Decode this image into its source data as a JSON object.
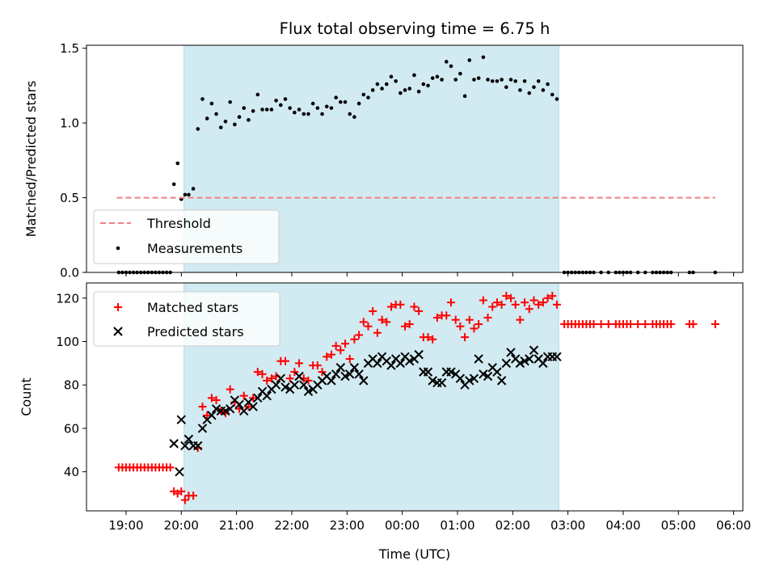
{
  "chart_data": [
    {
      "type": "scatter",
      "title": "Flux total observing time = 6.75 h",
      "ylabel": "Matched/Predicted stars",
      "xlabel": "",
      "ylim": [
        0,
        1.52
      ],
      "yticks": [
        "0.0",
        "0.5",
        "1.0",
        "1.5"
      ],
      "ytick_values": [
        0,
        0.5,
        1.0,
        1.5
      ],
      "shaded_span": [
        "20:03",
        "02:50"
      ],
      "shaded_color": "#add8e6",
      "legend_placement": "lower-left",
      "threshold": {
        "name": "Threshold",
        "y": 0.5,
        "x_range": [
          "18:50",
          "05:40"
        ],
        "color": "#f08080"
      },
      "series": [
        {
          "name": "Measurements",
          "color": "#000000",
          "x": [
            "18:52",
            "18:56",
            "19:00",
            "19:04",
            "19:08",
            "19:12",
            "19:16",
            "19:20",
            "19:24",
            "19:28",
            "19:32",
            "19:36",
            "19:40",
            "19:44",
            "19:48",
            "19:52",
            "19:56",
            "20:00",
            "20:04",
            "20:08",
            "20:13",
            "20:18",
            "20:23",
            "20:28",
            "20:33",
            "20:38",
            "20:43",
            "20:48",
            "20:53",
            "20:58",
            "21:03",
            "21:08",
            "21:13",
            "21:18",
            "21:23",
            "21:28",
            "21:33",
            "21:38",
            "21:43",
            "21:48",
            "21:53",
            "21:58",
            "22:03",
            "22:08",
            "22:13",
            "22:18",
            "22:23",
            "22:28",
            "22:33",
            "22:38",
            "22:43",
            "22:48",
            "22:53",
            "22:58",
            "23:03",
            "23:08",
            "23:13",
            "23:18",
            "23:23",
            "23:28",
            "23:33",
            "23:38",
            "23:43",
            "23:48",
            "23:53",
            "23:58",
            "00:03",
            "00:08",
            "00:13",
            "00:18",
            "00:23",
            "00:28",
            "00:33",
            "00:38",
            "00:43",
            "00:48",
            "00:53",
            "00:58",
            "01:03",
            "01:08",
            "01:13",
            "01:18",
            "01:23",
            "01:28",
            "01:33",
            "01:38",
            "01:43",
            "01:48",
            "01:53",
            "01:58",
            "02:03",
            "02:08",
            "02:13",
            "02:18",
            "02:23",
            "02:28",
            "02:33",
            "02:38",
            "02:43",
            "02:48",
            "02:56",
            "03:00",
            "03:04",
            "03:08",
            "03:12",
            "03:16",
            "03:20",
            "03:24",
            "03:28",
            "03:36",
            "03:44",
            "03:52",
            "03:56",
            "04:00",
            "04:04",
            "04:08",
            "04:16",
            "04:24",
            "04:32",
            "04:36",
            "04:40",
            "04:44",
            "04:48",
            "04:52",
            "05:12",
            "05:16",
            "05:40"
          ],
          "y": [
            0,
            0,
            0,
            0,
            0,
            0,
            0,
            0,
            0,
            0,
            0,
            0,
            0,
            0,
            0,
            0.59,
            0.73,
            0.49,
            0.52,
            0.52,
            0.56,
            0.96,
            1.16,
            1.03,
            1.13,
            1.06,
            0.97,
            1.01,
            1.14,
            0.99,
            1.04,
            1.1,
            1.02,
            1.08,
            1.19,
            1.09,
            1.09,
            1.09,
            1.15,
            1.12,
            1.16,
            1.1,
            1.07,
            1.09,
            1.06,
            1.06,
            1.13,
            1.1,
            1.06,
            1.11,
            1.1,
            1.17,
            1.14,
            1.14,
            1.06,
            1.04,
            1.13,
            1.19,
            1.17,
            1.22,
            1.26,
            1.23,
            1.26,
            1.31,
            1.28,
            1.2,
            1.22,
            1.23,
            1.32,
            1.21,
            1.26,
            1.25,
            1.3,
            1.31,
            1.29,
            1.41,
            1.38,
            1.29,
            1.33,
            1.18,
            1.42,
            1.29,
            1.3,
            1.44,
            1.29,
            1.28,
            1.28,
            1.29,
            1.24,
            1.29,
            1.28,
            1.22,
            1.28,
            1.2,
            1.24,
            1.28,
            1.22,
            1.26,
            1.19,
            1.16,
            0,
            0,
            0,
            0,
            0,
            0,
            0,
            0,
            0,
            0,
            0,
            0,
            0,
            0,
            0,
            0,
            0,
            0,
            0,
            0,
            0,
            0,
            0,
            0,
            0,
            0,
            0
          ]
        }
      ]
    },
    {
      "type": "scatter",
      "title": "",
      "ylabel": "Count",
      "xlabel": "Time (UTC)",
      "ylim": [
        22,
        127
      ],
      "yticks": [
        "40",
        "60",
        "80",
        "100",
        "120"
      ],
      "ytick_values": [
        40,
        60,
        80,
        100,
        120
      ],
      "xlim": [
        "18:17",
        "06:10"
      ],
      "xticks": [
        "19:00",
        "20:00",
        "21:00",
        "22:00",
        "23:00",
        "00:00",
        "01:00",
        "02:00",
        "03:00",
        "04:00",
        "05:00",
        "06:00"
      ],
      "legend_placement": "upper-left",
      "shaded_span": [
        "20:03",
        "02:50"
      ],
      "series": [
        {
          "name": "Matched stars",
          "color": "#ff0000",
          "marker": "+",
          "x": [
            "18:52",
            "18:56",
            "19:00",
            "19:04",
            "19:08",
            "19:12",
            "19:16",
            "19:20",
            "19:24",
            "19:28",
            "19:32",
            "19:36",
            "19:40",
            "19:44",
            "19:48",
            "19:52",
            "19:56",
            "20:00",
            "20:04",
            "20:08",
            "20:13",
            "20:18",
            "20:23",
            "20:28",
            "20:33",
            "20:38",
            "20:43",
            "20:48",
            "20:53",
            "20:58",
            "21:03",
            "21:08",
            "21:13",
            "21:18",
            "21:23",
            "21:28",
            "21:33",
            "21:38",
            "21:43",
            "21:48",
            "21:53",
            "21:58",
            "22:03",
            "22:08",
            "22:13",
            "22:18",
            "22:23",
            "22:28",
            "22:33",
            "22:38",
            "22:43",
            "22:48",
            "22:53",
            "22:58",
            "23:03",
            "23:08",
            "23:13",
            "23:18",
            "23:23",
            "23:28",
            "23:33",
            "23:38",
            "23:43",
            "23:48",
            "23:53",
            "23:58",
            "00:03",
            "00:08",
            "00:13",
            "00:18",
            "00:23",
            "00:28",
            "00:33",
            "00:38",
            "00:43",
            "00:48",
            "00:53",
            "00:58",
            "01:03",
            "01:08",
            "01:13",
            "01:18",
            "01:23",
            "01:28",
            "01:33",
            "01:38",
            "01:43",
            "01:48",
            "01:53",
            "01:58",
            "02:03",
            "02:08",
            "02:13",
            "02:18",
            "02:23",
            "02:28",
            "02:33",
            "02:38",
            "02:43",
            "02:48",
            "02:56",
            "03:00",
            "03:04",
            "03:08",
            "03:12",
            "03:16",
            "03:20",
            "03:24",
            "03:28",
            "03:36",
            "03:44",
            "03:52",
            "03:56",
            "04:00",
            "04:04",
            "04:08",
            "04:16",
            "04:24",
            "04:32",
            "04:36",
            "04:40",
            "04:44",
            "04:48",
            "04:52",
            "05:12",
            "05:16",
            "05:40"
          ],
          "y": [
            42,
            42,
            42,
            42,
            42,
            42,
            42,
            42,
            42,
            42,
            42,
            42,
            42,
            42,
            42,
            31,
            30,
            31,
            27,
            29,
            29,
            51,
            70,
            66,
            74,
            73,
            68,
            67,
            78,
            72,
            69,
            75,
            70,
            74,
            86,
            85,
            82,
            83,
            84,
            91,
            91,
            83,
            86,
            90,
            83,
            82,
            89,
            89,
            86,
            93,
            94,
            98,
            96,
            99,
            92,
            101,
            103,
            109,
            107,
            114,
            104,
            110,
            109,
            116,
            117,
            117,
            107,
            108,
            116,
            114,
            102,
            102,
            101,
            111,
            112,
            112,
            118,
            110,
            107,
            102,
            110,
            106,
            108,
            119,
            111,
            116,
            118,
            117,
            121,
            120,
            117,
            110,
            118,
            115,
            119,
            117,
            118,
            120,
            121,
            117,
            108,
            108,
            108,
            108,
            108,
            108,
            108,
            108,
            108,
            108,
            108,
            108,
            108,
            108,
            108,
            108,
            108,
            108,
            108,
            108,
            108,
            108,
            108,
            108,
            108,
            108,
            108
          ]
        },
        {
          "name": "Predicted stars",
          "color": "#000000",
          "marker": "x",
          "x": [
            "19:52",
            "19:58",
            "20:00",
            "20:04",
            "20:08",
            "20:13",
            "20:18",
            "20:23",
            "20:28",
            "20:33",
            "20:38",
            "20:43",
            "20:48",
            "20:53",
            "20:58",
            "21:03",
            "21:08",
            "21:13",
            "21:18",
            "21:23",
            "21:28",
            "21:33",
            "21:38",
            "21:43",
            "21:48",
            "21:53",
            "21:58",
            "22:03",
            "22:08",
            "22:13",
            "22:18",
            "22:23",
            "22:28",
            "22:33",
            "22:38",
            "22:43",
            "22:48",
            "22:53",
            "22:58",
            "23:03",
            "23:08",
            "23:13",
            "23:18",
            "23:23",
            "23:28",
            "23:33",
            "23:38",
            "23:43",
            "23:48",
            "23:53",
            "23:58",
            "00:03",
            "00:08",
            "00:13",
            "00:18",
            "00:23",
            "00:28",
            "00:33",
            "00:38",
            "00:43",
            "00:48",
            "00:53",
            "00:58",
            "01:03",
            "01:08",
            "01:13",
            "01:18",
            "01:23",
            "01:28",
            "01:33",
            "01:38",
            "01:43",
            "01:48",
            "01:53",
            "01:58",
            "02:03",
            "02:08",
            "02:13",
            "02:18",
            "02:23",
            "02:28",
            "02:33",
            "02:38",
            "02:43",
            "02:48"
          ],
          "y": [
            53,
            40,
            64,
            52,
            55,
            52,
            52,
            60,
            64,
            66,
            69,
            68,
            68,
            69,
            73,
            71,
            68,
            72,
            70,
            74,
            77,
            75,
            78,
            80,
            83,
            79,
            78,
            80,
            84,
            80,
            77,
            78,
            80,
            82,
            84,
            82,
            85,
            88,
            84,
            85,
            88,
            85,
            82,
            90,
            92,
            90,
            93,
            91,
            89,
            92,
            90,
            93,
            91,
            92,
            94,
            86,
            86,
            82,
            81,
            81,
            86,
            86,
            85,
            83,
            80,
            82,
            83,
            92,
            85,
            84,
            88,
            86,
            82,
            90,
            95,
            92,
            90,
            91,
            92,
            96,
            92,
            90,
            93,
            93,
            93
          ]
        }
      ]
    }
  ]
}
